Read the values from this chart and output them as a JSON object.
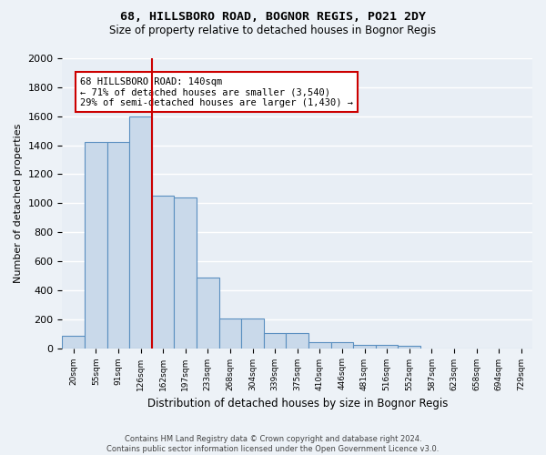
{
  "title1": "68, HILLSBORO ROAD, BOGNOR REGIS, PO21 2DY",
  "title2": "Size of property relative to detached houses in Bognor Regis",
  "xlabel": "Distribution of detached houses by size in Bognor Regis",
  "ylabel": "Number of detached properties",
  "bin_labels": [
    "20sqm",
    "55sqm",
    "91sqm",
    "126sqm",
    "162sqm",
    "197sqm",
    "233sqm",
    "268sqm",
    "304sqm",
    "339sqm",
    "375sqm",
    "410sqm",
    "446sqm",
    "481sqm",
    "516sqm",
    "552sqm",
    "587sqm",
    "623sqm",
    "658sqm",
    "694sqm",
    "729sqm"
  ],
  "bar_heights": [
    85,
    1420,
    1420,
    1600,
    1050,
    1040,
    490,
    205,
    205,
    105,
    105,
    40,
    40,
    25,
    20,
    15,
    0,
    0,
    0,
    0,
    0
  ],
  "bar_color": "#c9d9ea",
  "bar_edge_color": "#5a8fc0",
  "bg_color": "#e8eef5",
  "grid_color": "#ffffff",
  "red_line_x": 3.5,
  "red_line_color": "#cc0000",
  "annotation_text": "68 HILLSBORO ROAD: 140sqm\n← 71% of detached houses are smaller (3,540)\n29% of semi-detached houses are larger (1,430) →",
  "annotation_box_color": "#ffffff",
  "annotation_box_edge": "#cc0000",
  "footnote": "Contains HM Land Registry data © Crown copyright and database right 2024.\nContains public sector information licensed under the Open Government Licence v3.0.",
  "ylim": [
    0,
    2000
  ],
  "yticks": [
    0,
    200,
    400,
    600,
    800,
    1000,
    1200,
    1400,
    1600,
    1800,
    2000
  ]
}
